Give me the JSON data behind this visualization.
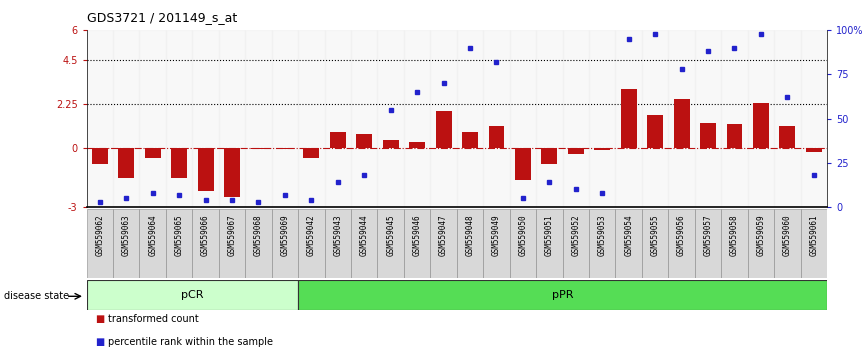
{
  "title": "GDS3721 / 201149_s_at",
  "samples": [
    "GSM559062",
    "GSM559063",
    "GSM559064",
    "GSM559065",
    "GSM559066",
    "GSM559067",
    "GSM559068",
    "GSM559069",
    "GSM559042",
    "GSM559043",
    "GSM559044",
    "GSM559045",
    "GSM559046",
    "GSM559047",
    "GSM559048",
    "GSM559049",
    "GSM559050",
    "GSM559051",
    "GSM559052",
    "GSM559053",
    "GSM559054",
    "GSM559055",
    "GSM559056",
    "GSM559057",
    "GSM559058",
    "GSM559059",
    "GSM559060",
    "GSM559061"
  ],
  "red_values": [
    -0.8,
    -1.5,
    -0.5,
    -1.5,
    -2.2,
    -2.5,
    -0.05,
    -0.05,
    -0.5,
    0.8,
    0.7,
    0.4,
    0.3,
    1.9,
    0.8,
    1.1,
    -1.6,
    -0.8,
    -0.3,
    -0.1,
    3.0,
    1.7,
    2.5,
    1.3,
    1.2,
    2.3,
    1.1,
    -0.2
  ],
  "blue_values": [
    3,
    5,
    8,
    7,
    4,
    4,
    3,
    7,
    4,
    14,
    18,
    55,
    65,
    70,
    90,
    82,
    5,
    14,
    10,
    8,
    95,
    98,
    78,
    88,
    90,
    98,
    62,
    18
  ],
  "pCR_count": 8,
  "ylim": [
    -3,
    6
  ],
  "yticks_red": [
    -3,
    0,
    2.25,
    4.5,
    6
  ],
  "ytick_red_labels": [
    "-3",
    "0",
    "2.25",
    "4.5",
    "6"
  ],
  "yticks_blue_pct": [
    0,
    25,
    50,
    75,
    100
  ],
  "ytick_blue_labels": [
    "0",
    "25",
    "50",
    "75",
    "100%"
  ],
  "red_color": "#bb1111",
  "blue_color": "#2222cc",
  "bar_width": 0.6,
  "dotted_hlines": [
    2.25,
    4.5
  ],
  "pcr_color_light": "#ccffcc",
  "ppr_color": "#55dd55",
  "pcr_label": "pCR",
  "ppr_label": "pPR",
  "legend_red": "transformed count",
  "legend_blue": "percentile rank within the sample",
  "disease_state_label": "disease state"
}
